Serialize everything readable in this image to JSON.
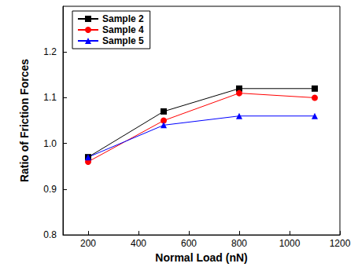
{
  "chart_data": {
    "type": "line",
    "x_label": "Normal Load (nN)",
    "y_label": "Ratio of Friction Forces",
    "x": [
      200,
      500,
      800,
      1100
    ],
    "series": [
      {
        "name": "Sample 2",
        "color": "#000000",
        "marker": "square",
        "values": [
          0.97,
          1.07,
          1.12,
          1.12
        ]
      },
      {
        "name": "Sample 4",
        "color": "#ff0000",
        "marker": "circle",
        "values": [
          0.96,
          1.05,
          1.11,
          1.1
        ]
      },
      {
        "name": "Sample 5",
        "color": "#0000ff",
        "marker": "triangle",
        "values": [
          0.97,
          1.04,
          1.06,
          1.06
        ]
      }
    ],
    "xlim": [
      100,
      1200
    ],
    "xticks": [
      200,
      400,
      600,
      800,
      1000,
      1200
    ],
    "ylim": [
      0.8,
      1.3
    ],
    "yticks": [
      0.8,
      0.9,
      {
        "value": 1,
        "label": "1.0"
      },
      1.1,
      1.2
    ],
    "grid": false,
    "legend": "upper left"
  }
}
